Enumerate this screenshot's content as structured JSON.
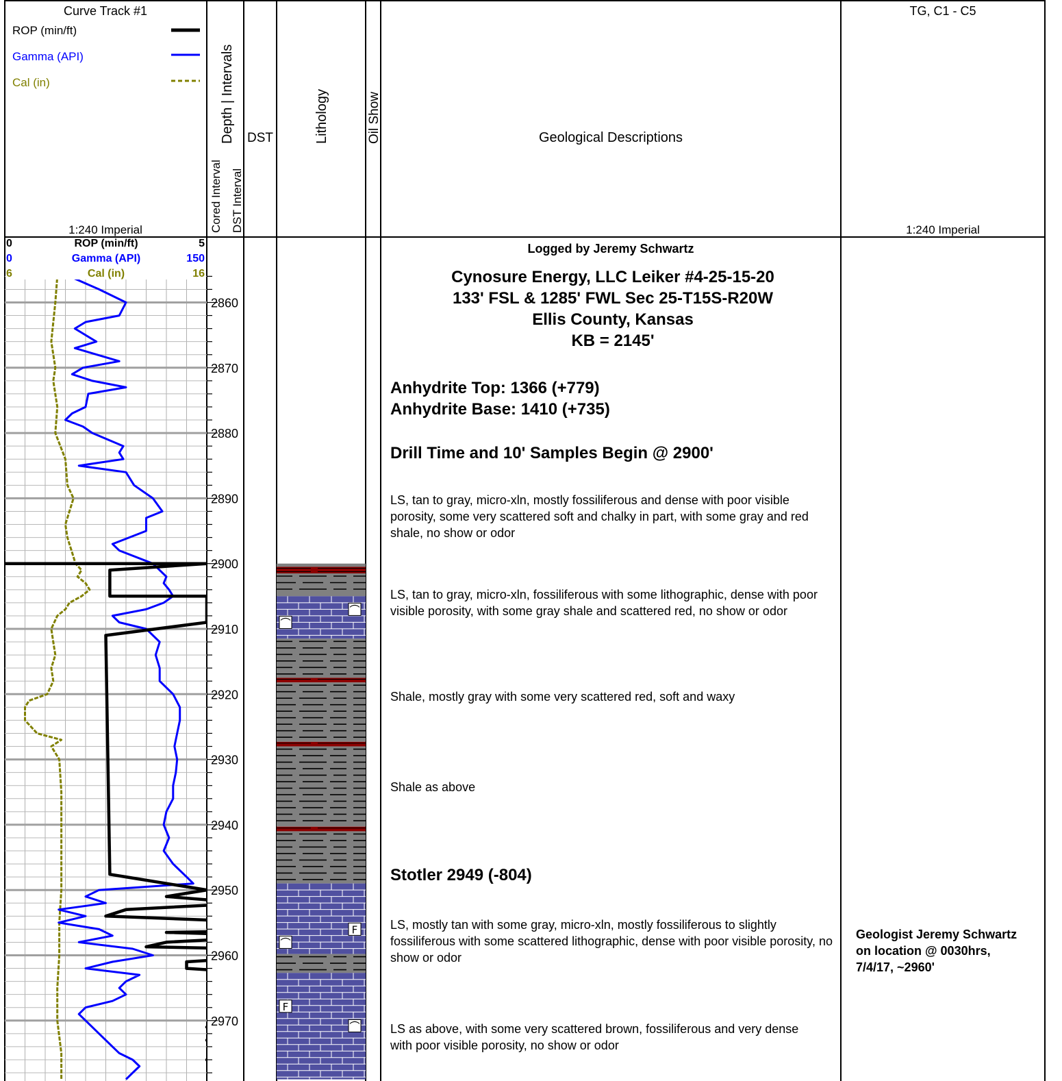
{
  "header": {
    "curve_track_title": "Curve Track #1",
    "legend": [
      {
        "label": "ROP (min/ft)",
        "color": "#000000",
        "style": "solid"
      },
      {
        "label": "Gamma (API)",
        "color": "#0000ff",
        "style": "solid"
      },
      {
        "label": "Cal (in)",
        "color": "#808000",
        "style": "dashed"
      }
    ],
    "scale_left": "1:240 Imperial",
    "depth_intervals_label": "Depth | Intervals",
    "cored_interval_label": "Cored Interval",
    "dst_interval_label": "DST Interval",
    "dst_label": "DST",
    "lithology_label": "Lithology",
    "oil_show_label": "Oil Show",
    "geo_desc_label": "Geological Descriptions",
    "gas_label": "TG, C1 - C5",
    "scale_right": "1:240 Imperial"
  },
  "scales": {
    "rop": {
      "name": "ROP (min/ft)",
      "min_label": "0",
      "max_label": "5"
    },
    "gamma": {
      "name": "Gamma (API)",
      "min_label": "0",
      "max_label": "150"
    },
    "cal": {
      "name": "Cal (in)",
      "min_label": "6",
      "max_label": "16"
    }
  },
  "depth_labels": [
    "2860",
    "2870",
    "2880",
    "2890",
    "2900",
    "2910",
    "2920",
    "2930",
    "2940",
    "2950",
    "2960",
    "2970"
  ],
  "chart_data": {
    "type": "line",
    "depth_range": [
      2850,
      2979
    ],
    "series": [
      {
        "name": "ROP (min/ft)",
        "color": "#000000",
        "range": [
          0,
          5
        ],
        "points": [
          [
            2900,
            0
          ],
          [
            2900,
            5
          ],
          [
            2901,
            2.6
          ],
          [
            2905,
            2.6
          ],
          [
            2905,
            5
          ],
          [
            2909,
            5
          ],
          [
            2911,
            2.5
          ],
          [
            2947.6,
            2.6
          ],
          [
            2948,
            3
          ],
          [
            2950,
            5
          ],
          [
            2951,
            4
          ],
          [
            2952,
            6
          ],
          [
            2953,
            3
          ],
          [
            2954,
            2.5
          ],
          [
            2954.6,
            5
          ],
          [
            2955,
            6.5
          ],
          [
            2956,
            9
          ],
          [
            2956.5,
            4
          ],
          [
            2957,
            7
          ],
          [
            2958,
            4
          ],
          [
            2958.7,
            3.5
          ],
          [
            2959,
            6
          ],
          [
            2960,
            7
          ],
          [
            2961,
            4.5
          ],
          [
            2962,
            4.5
          ],
          [
            2963,
            7
          ],
          [
            2964,
            8
          ],
          [
            2965,
            9
          ],
          [
            2966,
            7.5
          ],
          [
            2967,
            7.5
          ],
          [
            2968,
            5.5
          ],
          [
            2969,
            5.5
          ],
          [
            2970,
            5.5
          ],
          [
            2971,
            5
          ],
          [
            2972,
            6
          ],
          [
            2973,
            5
          ],
          [
            2974,
            6
          ],
          [
            2975,
            6.5
          ],
          [
            2976,
            5
          ],
          [
            2977,
            6
          ],
          [
            2978,
            6.5
          ],
          [
            2979,
            6
          ]
        ]
      },
      {
        "name": "Gamma (API)",
        "color": "#0000ff",
        "range": [
          0,
          150
        ],
        "points": [
          [
            2850,
            35
          ],
          [
            2852,
            40
          ],
          [
            2854,
            45
          ],
          [
            2855,
            43
          ],
          [
            2856,
            48
          ],
          [
            2858,
            70
          ],
          [
            2860,
            90
          ],
          [
            2862,
            85
          ],
          [
            2863,
            60
          ],
          [
            2864,
            52
          ],
          [
            2866,
            68
          ],
          [
            2867,
            52
          ],
          [
            2869,
            85
          ],
          [
            2870,
            58
          ],
          [
            2871,
            50
          ],
          [
            2872,
            65
          ],
          [
            2873,
            90
          ],
          [
            2874,
            62
          ],
          [
            2876,
            60
          ],
          [
            2877,
            50
          ],
          [
            2878,
            45
          ],
          [
            2879,
            58
          ],
          [
            2880,
            65
          ],
          [
            2882,
            88
          ],
          [
            2883,
            85
          ],
          [
            2884,
            88
          ],
          [
            2885,
            55
          ],
          [
            2886,
            90
          ],
          [
            2888,
            96
          ],
          [
            2890,
            110
          ],
          [
            2892,
            117
          ],
          [
            2893,
            105
          ],
          [
            2895,
            105
          ],
          [
            2897,
            80
          ],
          [
            2898,
            85
          ],
          [
            2900,
            110
          ],
          [
            2902,
            120
          ],
          [
            2903,
            118
          ],
          [
            2904,
            122
          ],
          [
            2905,
            125
          ],
          [
            2906,
            118
          ],
          [
            2907,
            105
          ],
          [
            2908,
            80
          ],
          [
            2909,
            85
          ],
          [
            2910,
            105
          ],
          [
            2912,
            115
          ],
          [
            2914,
            112
          ],
          [
            2916,
            115
          ],
          [
            2918,
            115
          ],
          [
            2920,
            125
          ],
          [
            2922,
            130
          ],
          [
            2924,
            130
          ],
          [
            2926,
            128
          ],
          [
            2928,
            126
          ],
          [
            2930,
            128
          ],
          [
            2932,
            127
          ],
          [
            2934,
            125
          ],
          [
            2936,
            125
          ],
          [
            2938,
            120
          ],
          [
            2940,
            118
          ],
          [
            2942,
            122
          ],
          [
            2944,
            118
          ],
          [
            2946,
            125
          ],
          [
            2948,
            135
          ],
          [
            2949,
            140
          ],
          [
            2950,
            70
          ],
          [
            2951,
            60
          ],
          [
            2952,
            75
          ],
          [
            2953,
            40
          ],
          [
            2954,
            60
          ],
          [
            2955,
            40
          ],
          [
            2956,
            70
          ],
          [
            2957,
            80
          ],
          [
            2958,
            55
          ],
          [
            2959,
            95
          ],
          [
            2960,
            110
          ],
          [
            2961,
            80
          ],
          [
            2962,
            60
          ],
          [
            2963,
            100
          ],
          [
            2964,
            90
          ],
          [
            2965,
            85
          ],
          [
            2966,
            90
          ],
          [
            2967,
            80
          ],
          [
            2968,
            60
          ],
          [
            2969,
            55
          ],
          [
            2970,
            60
          ],
          [
            2971,
            65
          ],
          [
            2972,
            70
          ],
          [
            2973,
            75
          ],
          [
            2974,
            80
          ],
          [
            2975,
            85
          ],
          [
            2976,
            95
          ],
          [
            2977,
            100
          ],
          [
            2978,
            95
          ],
          [
            2979,
            90
          ]
        ]
      },
      {
        "name": "Cal (in)",
        "color": "#808000",
        "range": [
          6,
          16
        ],
        "points": [
          [
            2850,
            6
          ],
          [
            2851,
            6.6
          ],
          [
            2852,
            7.7
          ],
          [
            2853,
            8.5
          ],
          [
            2854,
            8.6
          ],
          [
            2856,
            8.6
          ],
          [
            2860,
            8.5
          ],
          [
            2866,
            8.3
          ],
          [
            2870,
            8.5
          ],
          [
            2872,
            8.4
          ],
          [
            2876,
            8.6
          ],
          [
            2880,
            8.5
          ],
          [
            2884,
            9
          ],
          [
            2888,
            9.1
          ],
          [
            2890,
            9.4
          ],
          [
            2892,
            9.2
          ],
          [
            2894,
            9
          ],
          [
            2896,
            9.1
          ],
          [
            2898,
            9.3
          ],
          [
            2900,
            9.5
          ],
          [
            2901,
            9.8
          ],
          [
            2902,
            9.6
          ],
          [
            2903,
            10
          ],
          [
            2904,
            10.2
          ],
          [
            2905,
            9.8
          ],
          [
            2906,
            9.2
          ],
          [
            2907,
            9
          ],
          [
            2908,
            8.6
          ],
          [
            2910,
            8.3
          ],
          [
            2912,
            8.4
          ],
          [
            2914,
            8.5
          ],
          [
            2916,
            8.3
          ],
          [
            2918,
            8.4
          ],
          [
            2920,
            8.1
          ],
          [
            2921,
            7.2
          ],
          [
            2922,
            7
          ],
          [
            2924,
            7
          ],
          [
            2926,
            7.6
          ],
          [
            2927,
            8.8
          ],
          [
            2928,
            8.3
          ],
          [
            2930,
            8.7
          ],
          [
            2935,
            8.8
          ],
          [
            2940,
            8.8
          ],
          [
            2945,
            8.8
          ],
          [
            2950,
            8.8
          ],
          [
            2955,
            8.7
          ],
          [
            2960,
            8.7
          ],
          [
            2965,
            8.6
          ],
          [
            2970,
            8.6
          ],
          [
            2975,
            8.8
          ],
          [
            2979,
            8.8
          ]
        ]
      }
    ]
  },
  "lithology": [
    {
      "top": 2900,
      "base": 2900.5,
      "type": "shale"
    },
    {
      "top": 2900.5,
      "base": 2901.5,
      "type": "red-shale"
    },
    {
      "top": 2901.5,
      "base": 2905,
      "type": "shale"
    },
    {
      "top": 2905,
      "base": 2911.5,
      "type": "limestone",
      "symbols": [
        {
          "d": 2907,
          "pos": "right",
          "s": "⌒"
        },
        {
          "d": 2909,
          "pos": "left",
          "s": "⌒"
        }
      ]
    },
    {
      "top": 2911.5,
      "base": 2917.5,
      "type": "shale"
    },
    {
      "top": 2917.5,
      "base": 2918.2,
      "type": "red-shale"
    },
    {
      "top": 2918.2,
      "base": 2927.3,
      "type": "shale"
    },
    {
      "top": 2927.3,
      "base": 2928.0,
      "type": "red-shale"
    },
    {
      "top": 2928.0,
      "base": 2940.3,
      "type": "shale"
    },
    {
      "top": 2940.3,
      "base": 2941.0,
      "type": "red-shale"
    },
    {
      "top": 2941.0,
      "base": 2949,
      "type": "shale"
    },
    {
      "top": 2949,
      "base": 2959.8,
      "type": "limestone",
      "symbols": [
        {
          "d": 2956,
          "pos": "right",
          "s": "F"
        },
        {
          "d": 2958,
          "pos": "left",
          "s": "⌒"
        }
      ]
    },
    {
      "top": 2959.8,
      "base": 2962.7,
      "type": "shale"
    },
    {
      "top": 2962.7,
      "base": 2979,
      "type": "limestone",
      "symbols": [
        {
          "d": 2967.8,
          "pos": "left",
          "s": "F"
        },
        {
          "d": 2970.8,
          "pos": "right",
          "s": "⌒"
        }
      ]
    }
  ],
  "descriptions": {
    "logged_by": "Logged by Jeremy Schwartz",
    "well_header": [
      "Cynosure Energy, LLC Leiker #4-25-15-20",
      "133' FSL & 1285' FWL Sec 25-T15S-R20W",
      "Ellis County, Kansas",
      "KB = 2145'"
    ],
    "anhydrite": [
      "Anhydrite Top: 1366 (+779)",
      "Anhydrite Base: 1410 (+735)"
    ],
    "drill_time": "Drill Time and 10' Samples Begin @ 2900'",
    "desc1": "LS, tan to gray, micro-xln, mostly fossiliferous and dense with poor visible porosity, some very scattered soft and chalky in part, with some gray and red shale, no show or odor",
    "desc2": "LS, tan to gray, micro-xln, fossiliferous with some lithographic, dense with poor visible porosity, with some gray shale and scattered red, no show or odor",
    "desc3": "Shale, mostly gray with some very scattered red, soft and waxy",
    "desc4": "Shale as above",
    "stotler": "Stotler  2949 (-804)",
    "desc5": "LS, mostly tan with some gray, micro-xln, mostly fossiliferous to slightly fossiliferous with some scattered lithographic, dense with poor visible porosity, no show or odor",
    "desc6": "LS as above, with some very scattered brown, fossiliferous and very dense with poor visible porosity, no show or odor"
  },
  "gas_note": "Geologist Jeremy Schwartz on location @ 0030hrs, 7/4/17, ~2960'"
}
